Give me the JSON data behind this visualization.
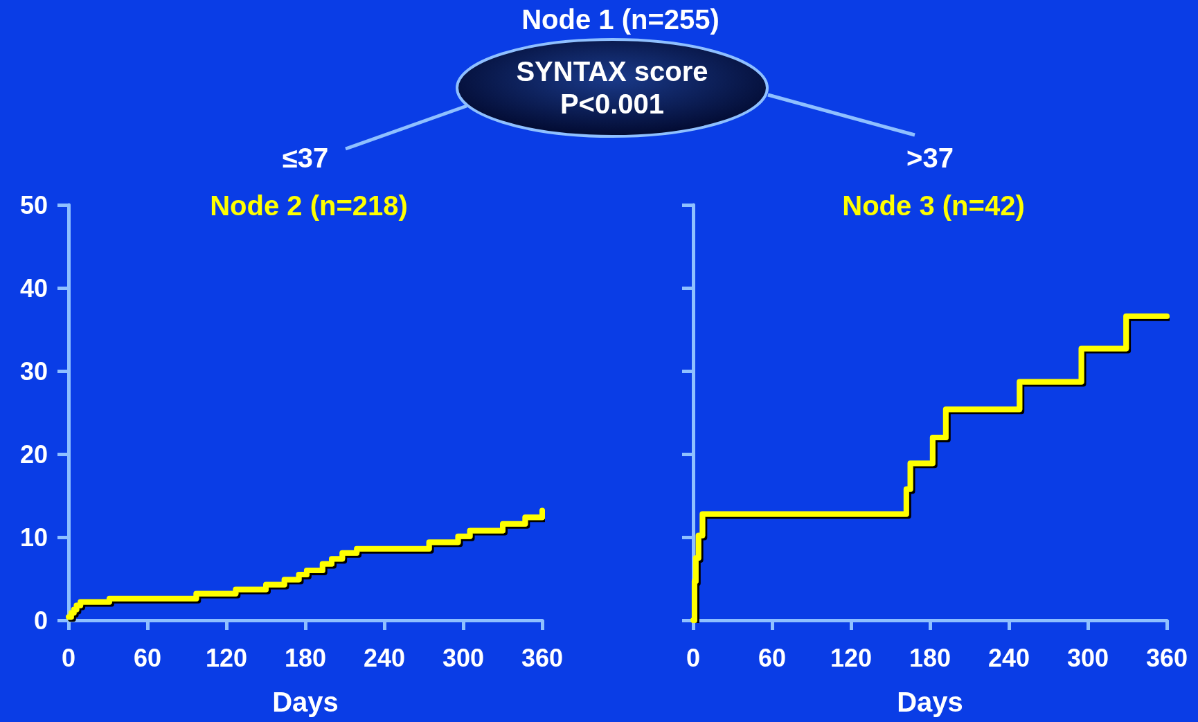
{
  "chart_data": [
    {
      "type": "step",
      "title": "Node 2 (n=218)",
      "xlabel": "Days",
      "annotations": [
        "Node 1 (n=255)",
        "SYNTAX score",
        "P<0.001",
        "≤37"
      ],
      "x": [
        0,
        2,
        4,
        6,
        9,
        31,
        97,
        127,
        150,
        164,
        175,
        181,
        193,
        200,
        208,
        219,
        274,
        296,
        305,
        330,
        347,
        360
      ],
      "values": [
        0.4,
        0.9,
        1.3,
        1.8,
        2.2,
        2.6,
        3.2,
        3.7,
        4.3,
        4.9,
        5.5,
        6.0,
        6.8,
        7.4,
        8.1,
        8.6,
        9.4,
        10.1,
        10.8,
        11.6,
        12.4,
        13.2
      ],
      "color": "#ffff00",
      "xlim": [
        0,
        360
      ],
      "ylim": [
        0,
        50
      ],
      "xticks": [
        0,
        60,
        120,
        180,
        240,
        300,
        360
      ],
      "yticks": [
        0,
        10,
        20,
        30,
        40,
        50
      ]
    },
    {
      "type": "step",
      "title": "Node 3 (n=42)",
      "xlabel": "Days",
      "annotations": [
        ">37"
      ],
      "x": [
        0,
        1,
        2,
        4,
        7,
        162,
        165,
        182,
        192,
        248,
        295,
        329,
        360
      ],
      "values": [
        0,
        4.7,
        7.5,
        10.2,
        12.8,
        15.8,
        18.9,
        22,
        25.4,
        28.7,
        32.7,
        36.6,
        36.6
      ],
      "color": "#ffff00",
      "xlim": [
        0,
        360
      ],
      "ylim": [
        0,
        50
      ],
      "xticks": [
        0,
        60,
        120,
        180,
        240,
        300,
        360
      ],
      "yticks": [
        0,
        10,
        20,
        30,
        40,
        50
      ],
      "tick_labels": "x"
    }
  ]
}
